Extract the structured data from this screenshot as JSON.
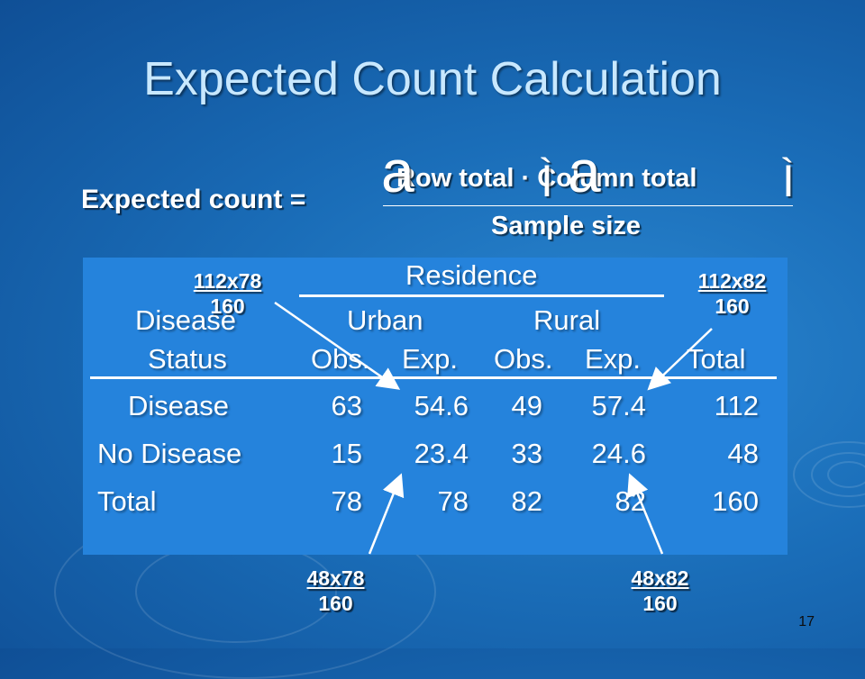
{
  "slide": {
    "title": "Expected Count Calculation",
    "page_number": "17"
  },
  "formula": {
    "label": "Expected count  =",
    "numerator": "Row total · Column total",
    "denominator": "Sample size",
    "glyph_left": "a",
    "glyph_right": "a"
  },
  "table": {
    "header_group": "Residence",
    "row_header_line1": "Disease",
    "row_header_line2": "Status",
    "urban_label": "Urban",
    "rural_label": "Rural",
    "col_obs": "Obs.",
    "col_exp": "Exp.",
    "col_total": "Total",
    "rows": [
      {
        "label": "Disease",
        "urban_obs": "63",
        "urban_exp": "54.6",
        "rural_obs": "49",
        "rural_exp": "57.4",
        "total": "112"
      },
      {
        "label": "No Disease",
        "urban_obs": "15",
        "urban_exp": "23.4",
        "rural_obs": "33",
        "rural_exp": "24.6",
        "total": "48"
      },
      {
        "label": "Total",
        "urban_obs": "78",
        "urban_exp": "78",
        "rural_obs": "82",
        "rural_exp": "82",
        "total": "160"
      }
    ]
  },
  "annotations": [
    {
      "numerator": "112x78",
      "denominator": "160"
    },
    {
      "numerator": "112x82",
      "denominator": "160"
    },
    {
      "numerator": "48x78",
      "denominator": "160"
    },
    {
      "numerator": "48x82",
      "denominator": "160"
    }
  ]
}
